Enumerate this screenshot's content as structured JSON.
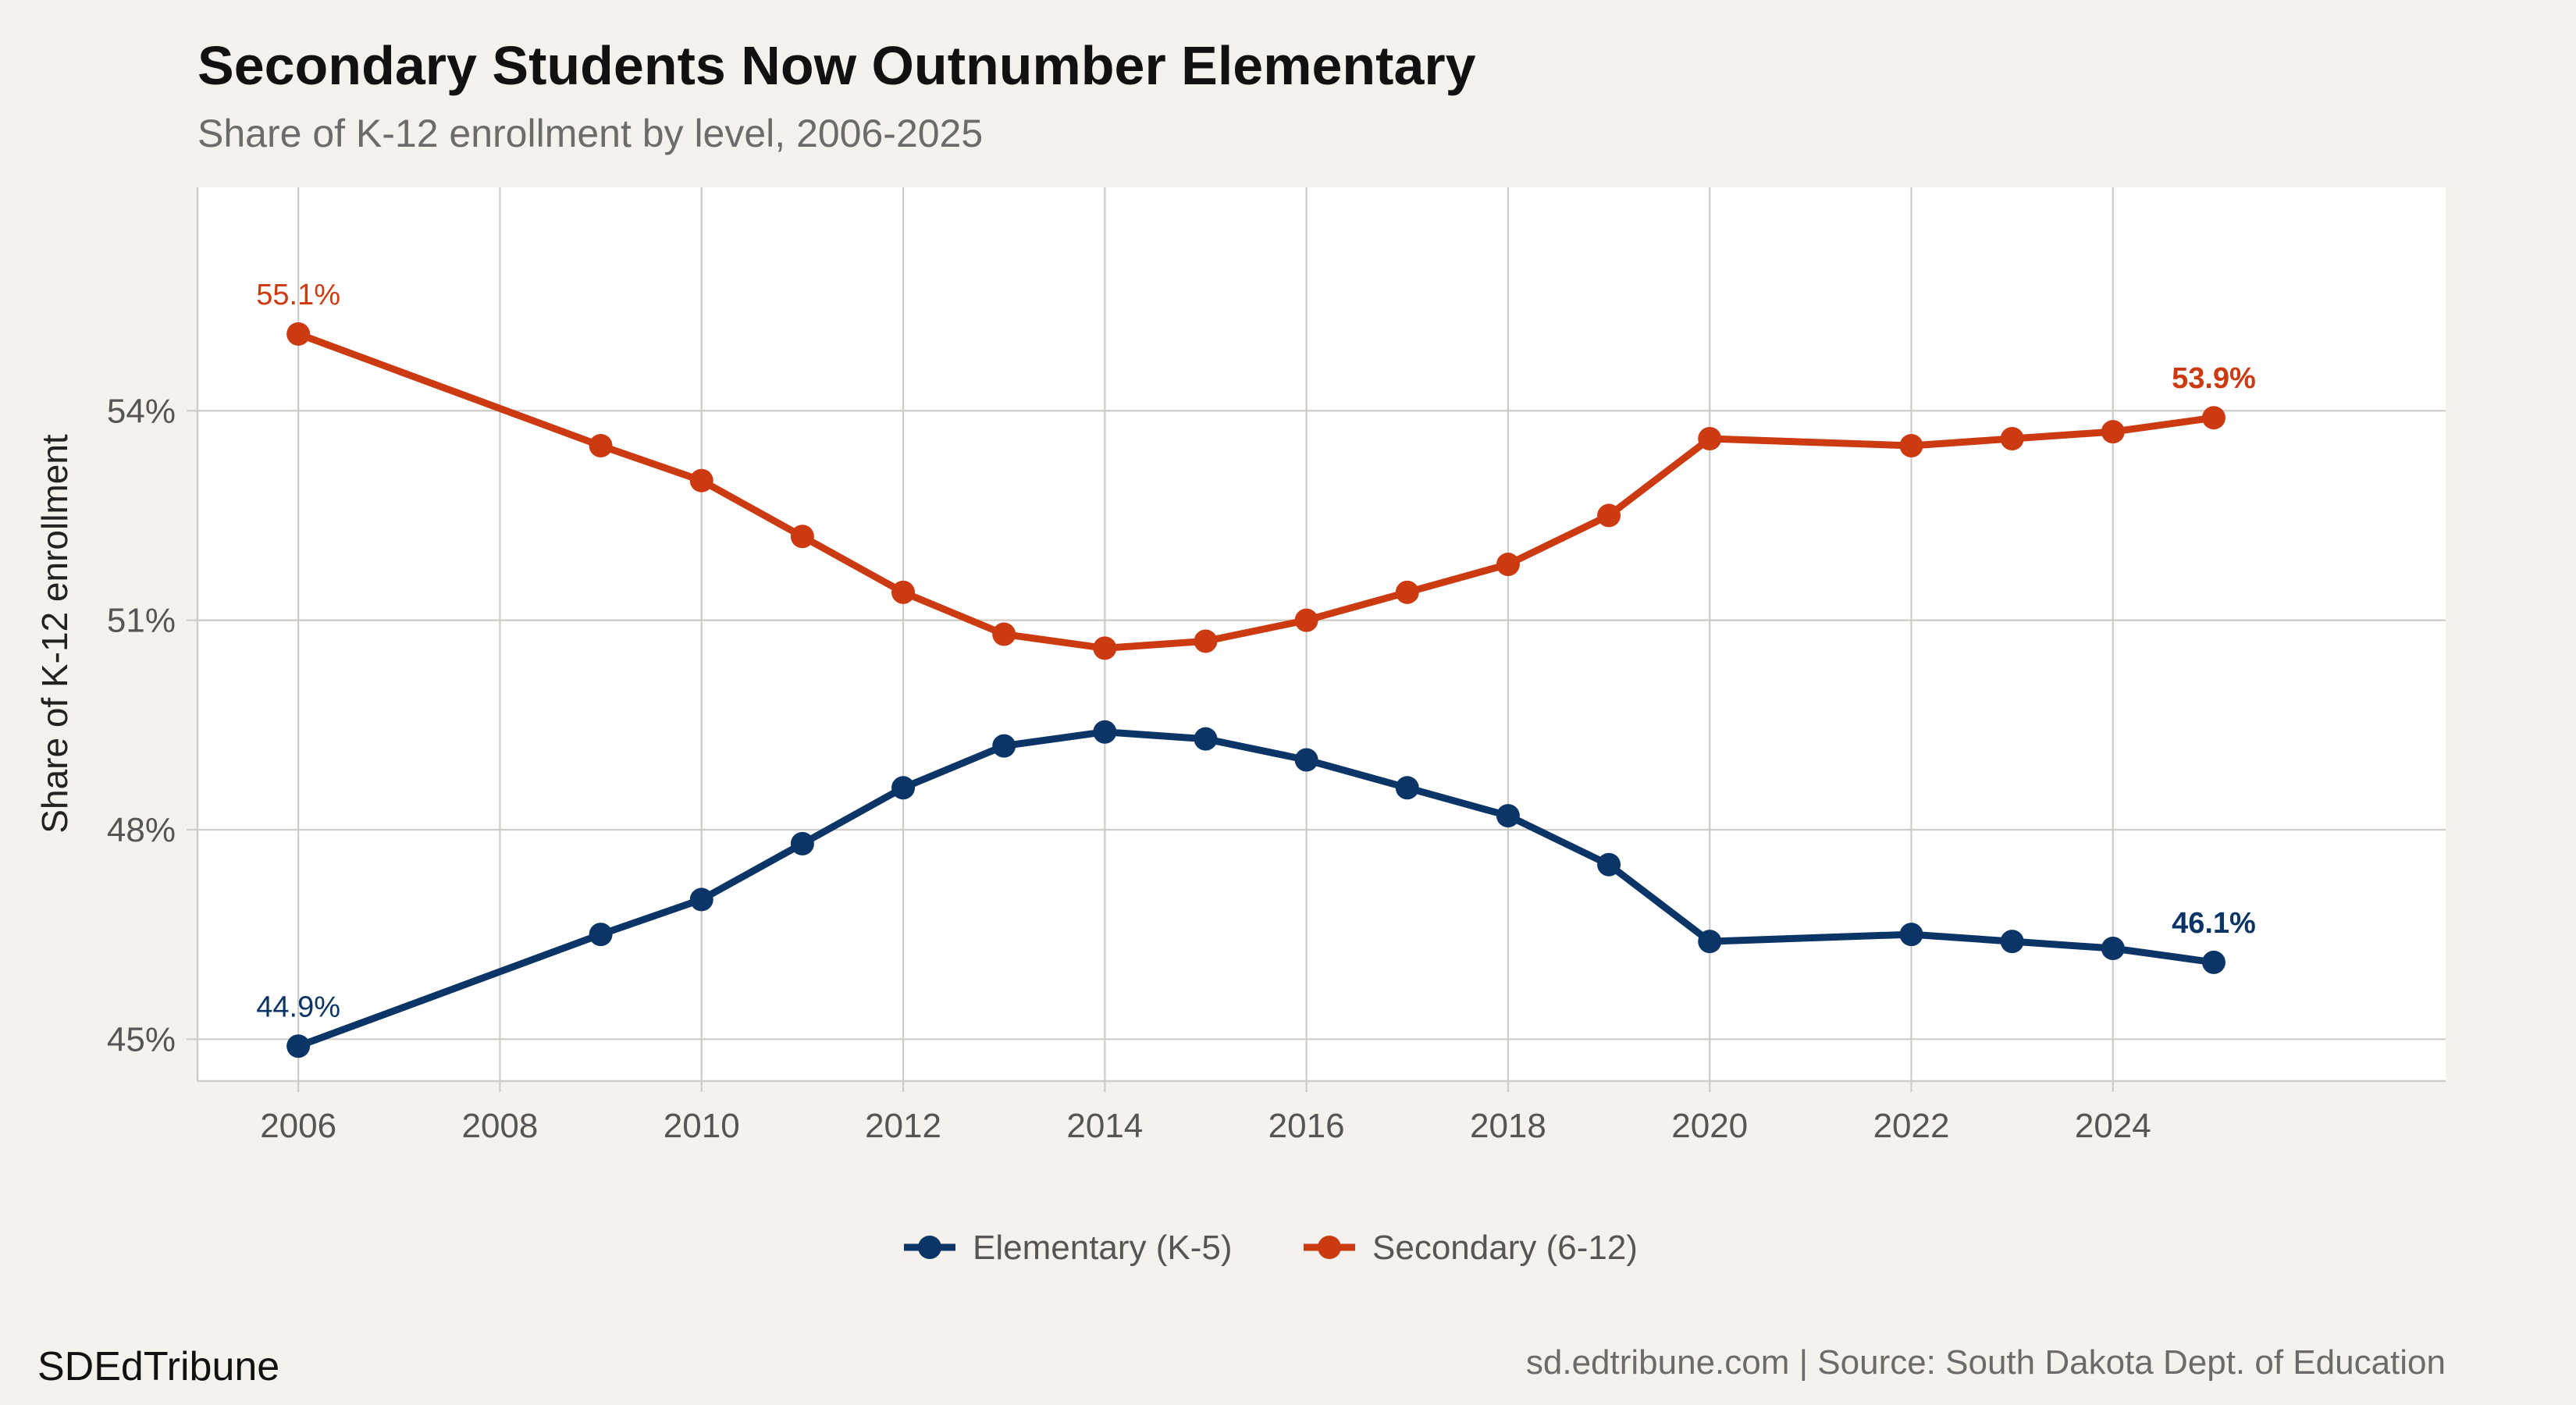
{
  "chart_data": {
    "type": "line",
    "title": "Secondary Students Now Outnumber Elementary",
    "subtitle": "Share of K-12 enrollment by level, 2006-2025",
    "xlabel": "",
    "ylabel": "Share of K-12 enrollment",
    "xlim": [
      2005,
      2027.3
    ],
    "ylim": [
      44.4,
      57.2
    ],
    "x_ticks": [
      2006,
      2008,
      2010,
      2012,
      2014,
      2016,
      2018,
      2020,
      2022,
      2024
    ],
    "y_ticks": [
      45,
      48,
      51,
      54
    ],
    "y_tick_labels": [
      "45%",
      "48%",
      "51%",
      "54%"
    ],
    "grid": true,
    "legend_position": "bottom",
    "series": [
      {
        "name": "Elementary (K-5)",
        "color": "#0b3566",
        "x": [
          2006,
          2009,
          2010,
          2011,
          2012,
          2013,
          2014,
          2015,
          2016,
          2017,
          2018,
          2019,
          2020,
          2022,
          2023,
          2024,
          2025
        ],
        "values": [
          44.9,
          46.5,
          47.0,
          47.8,
          48.6,
          49.2,
          49.4,
          49.3,
          49.0,
          48.6,
          48.2,
          47.5,
          46.4,
          46.5,
          46.4,
          46.3,
          46.1
        ],
        "labels": [
          {
            "x": 2006,
            "text": "44.9%",
            "bold": false
          },
          {
            "x": 2025,
            "text": "46.1%",
            "bold": true
          }
        ]
      },
      {
        "name": "Secondary (6-12)",
        "color": "#cc3a12",
        "x": [
          2006,
          2009,
          2010,
          2011,
          2012,
          2013,
          2014,
          2015,
          2016,
          2017,
          2018,
          2019,
          2020,
          2022,
          2023,
          2024,
          2025
        ],
        "values": [
          55.1,
          53.5,
          53.0,
          52.2,
          51.4,
          50.8,
          50.6,
          50.7,
          51.0,
          51.4,
          51.8,
          52.5,
          53.6,
          53.5,
          53.6,
          53.7,
          53.9
        ],
        "labels": [
          {
            "x": 2006,
            "text": "55.1%",
            "bold": false
          },
          {
            "x": 2025,
            "text": "53.9%",
            "bold": true
          }
        ]
      }
    ]
  },
  "footer": {
    "brand": "SDEdTribune",
    "source": "sd.edtribune.com | Source: South Dakota Dept. of Education"
  },
  "colors": {
    "background": "#f5f2ee",
    "panel": "#ffffff",
    "grid": "#cfcbc6"
  }
}
